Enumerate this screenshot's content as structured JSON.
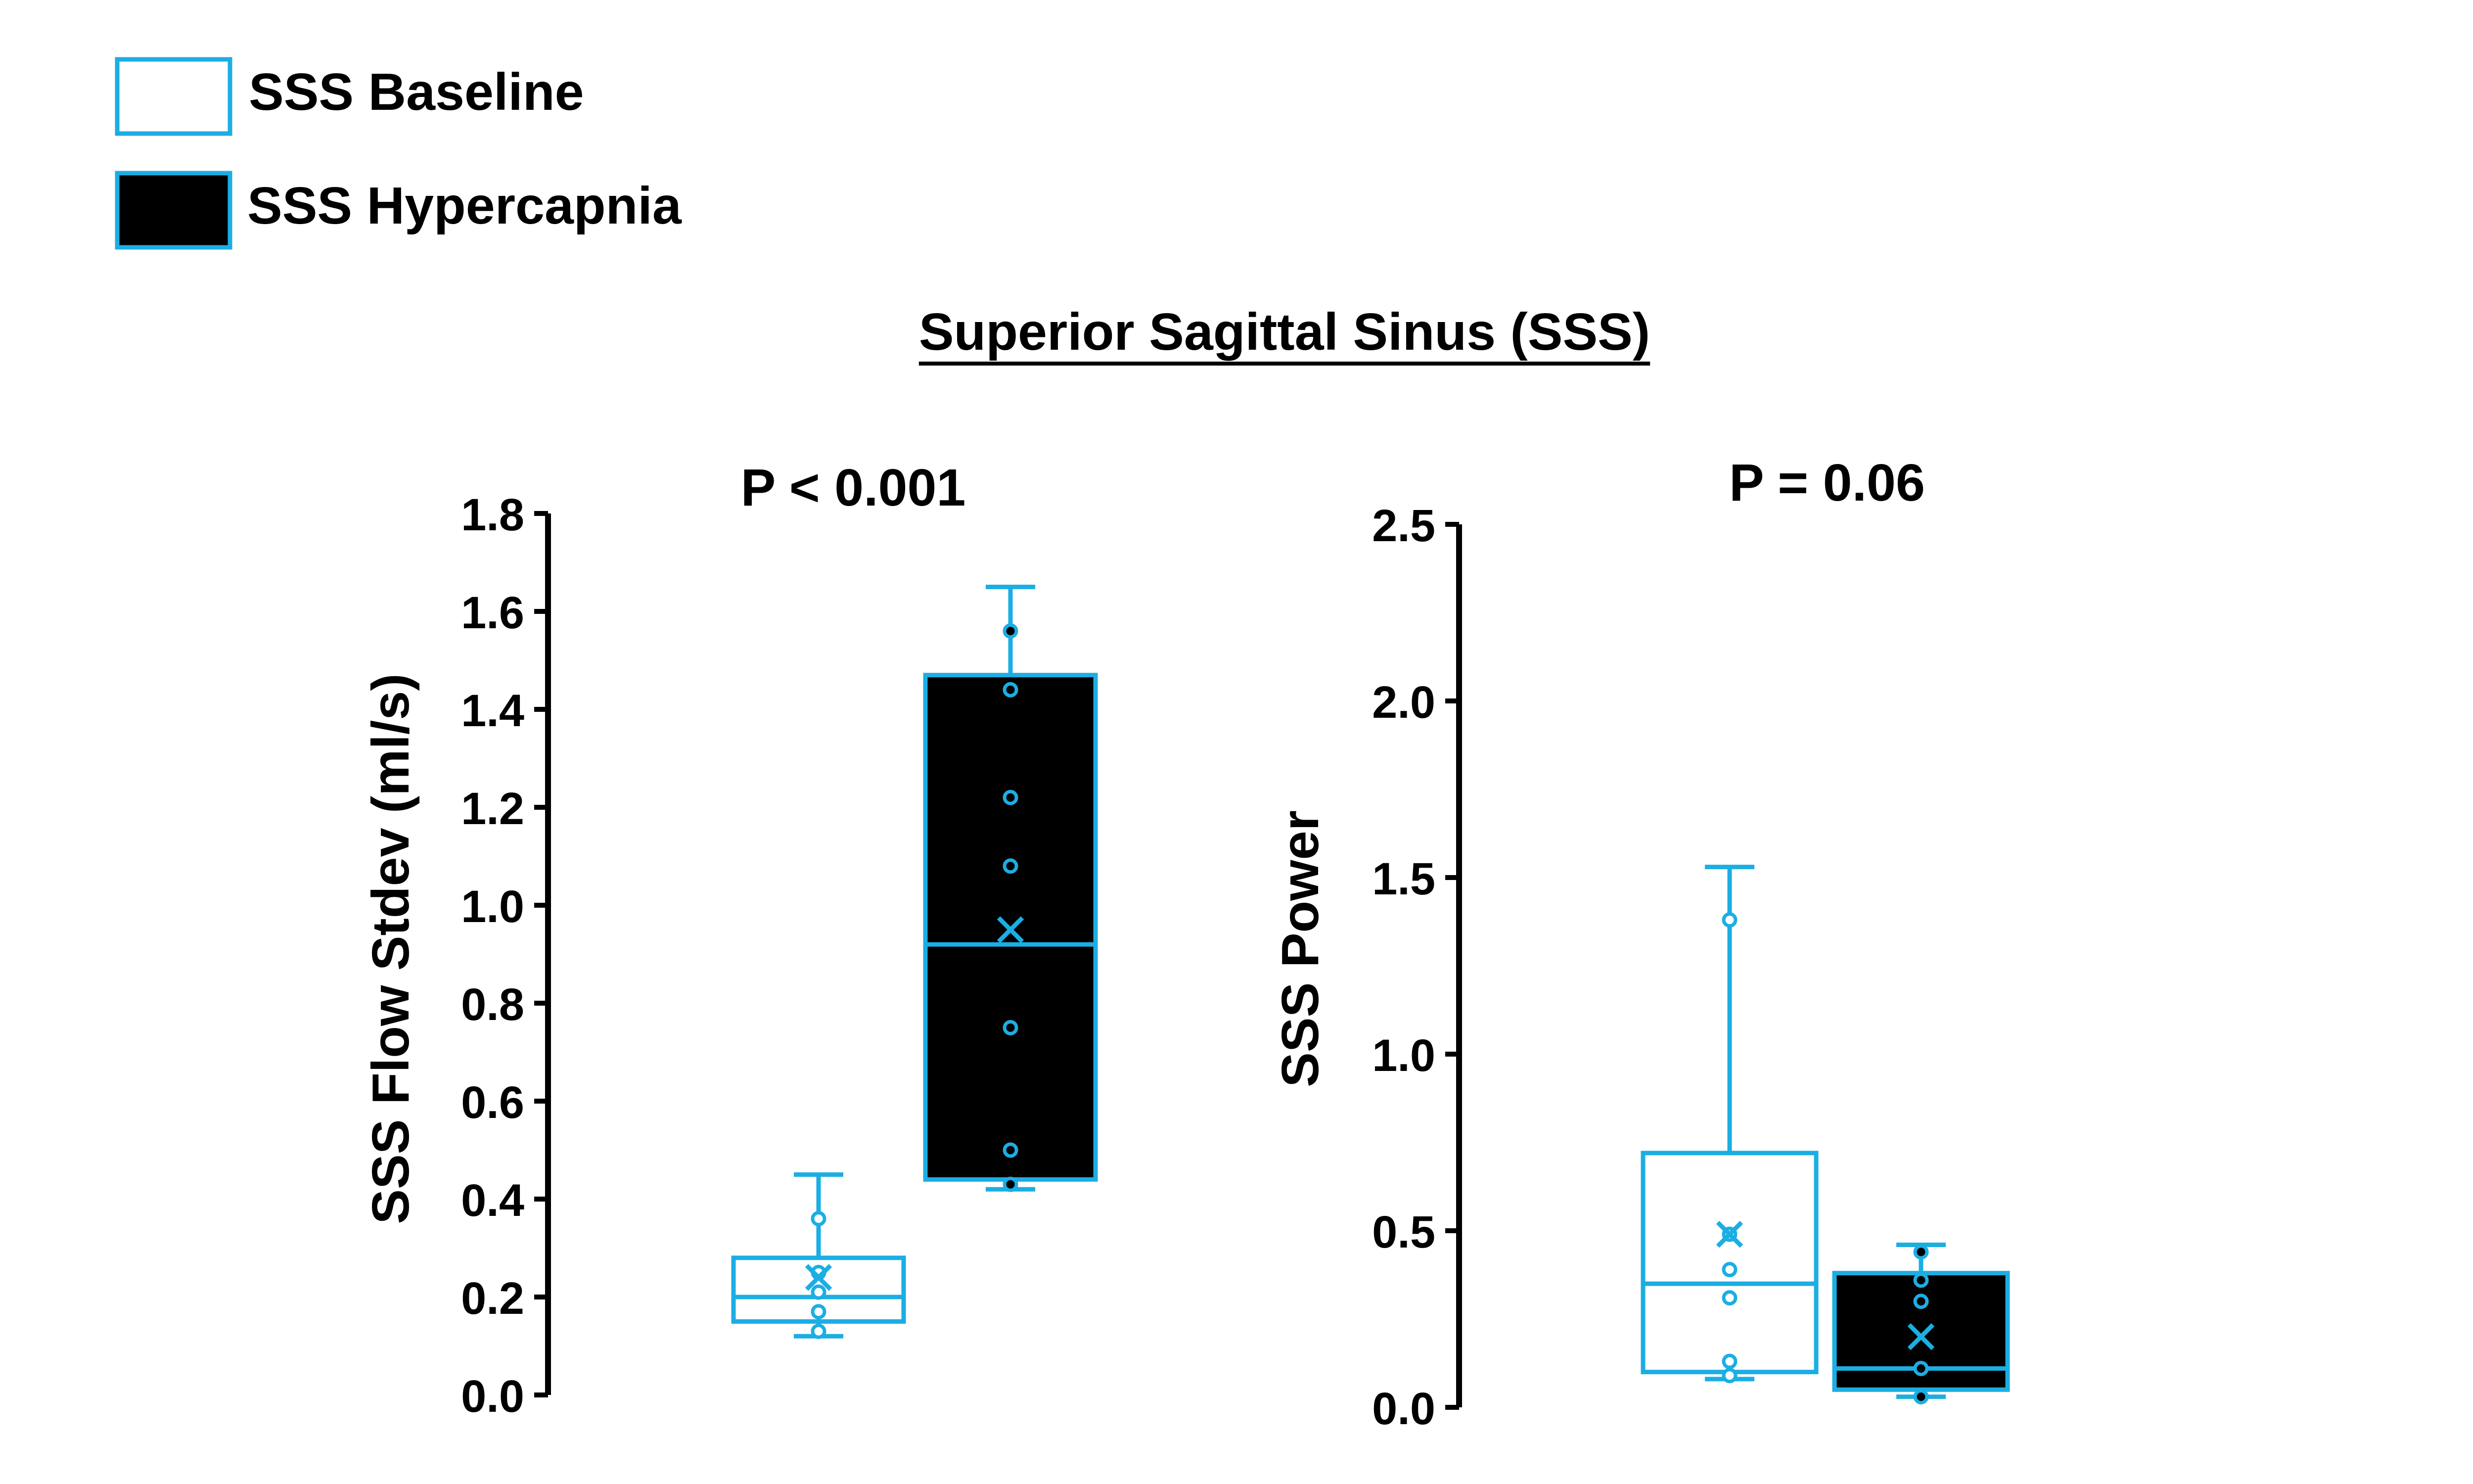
{
  "title": "Superior Sagittal Sinus (SSS)",
  "colors": {
    "accent": "#1BAEE3",
    "dark_fill": "#000000",
    "light_fill": "#ffffff",
    "text": "#000000"
  },
  "legend": {
    "position": "top-left",
    "items": [
      {
        "label": "SSS Baseline",
        "fill": "#ffffff"
      },
      {
        "label": "SSS Hypercapnia",
        "fill": "#000000"
      }
    ]
  },
  "chart_data": [
    {
      "type": "box",
      "annotation": "P < 0.001",
      "ylabel": "SSS Flow Stdev (ml/s)",
      "ylim": [
        0.0,
        1.8
      ],
      "yticks": [
        "0.0",
        "0.2",
        "0.4",
        "0.6",
        "0.8",
        "1.0",
        "1.2",
        "1.4",
        "1.6",
        "1.8"
      ],
      "series": [
        {
          "name": "SSS Baseline",
          "fill": "#ffffff",
          "whisker_low": 0.12,
          "q1": 0.15,
          "median": 0.2,
          "q3": 0.28,
          "whisker_high": 0.45,
          "mean": 0.24,
          "points": [
            0.13,
            0.17,
            0.21,
            0.25,
            0.36
          ]
        },
        {
          "name": "SSS Hypercapnia",
          "fill": "#000000",
          "whisker_low": 0.42,
          "q1": 0.44,
          "median": 0.92,
          "q3": 1.47,
          "whisker_high": 1.65,
          "mean": 0.95,
          "points": [
            0.43,
            0.5,
            0.75,
            1.08,
            1.22,
            1.44,
            1.56
          ]
        }
      ]
    },
    {
      "type": "box",
      "annotation": "P = 0.06",
      "ylabel": "SSS Power",
      "ylim": [
        0.0,
        2.5
      ],
      "yticks": [
        "0.0",
        "0.5",
        "1.0",
        "1.5",
        "2.0",
        "2.5"
      ],
      "series": [
        {
          "name": "SSS Baseline",
          "fill": "#ffffff",
          "whisker_low": 0.08,
          "q1": 0.1,
          "median": 0.35,
          "q3": 0.72,
          "whisker_high": 1.53,
          "mean": 0.49,
          "points": [
            0.09,
            0.13,
            0.31,
            0.39,
            0.49,
            1.38
          ]
        },
        {
          "name": "SSS Hypercapnia",
          "fill": "#000000",
          "whisker_low": 0.03,
          "q1": 0.05,
          "median": 0.11,
          "q3": 0.38,
          "whisker_high": 0.46,
          "mean": 0.2,
          "points": [
            0.03,
            0.11,
            0.3,
            0.36,
            0.44
          ]
        }
      ]
    }
  ]
}
